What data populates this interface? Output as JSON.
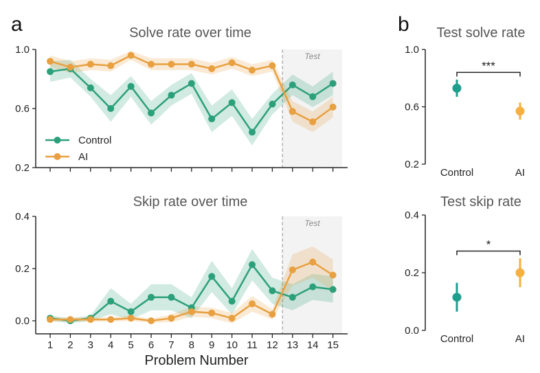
{
  "figure": {
    "panel_a_letter": "a",
    "panel_b_letter": "b"
  },
  "chart_data": [
    {
      "id": "solve",
      "type": "line",
      "title": "Solve rate over time",
      "xlabel": "",
      "ylabel": "",
      "x": [
        1,
        2,
        3,
        4,
        5,
        6,
        7,
        8,
        9,
        10,
        11,
        12,
        13,
        14,
        15
      ],
      "ylim": [
        0.2,
        1.0
      ],
      "yticks": [
        "1.0",
        "0.6",
        "0.2"
      ],
      "ytick_values": [
        1.0,
        0.6,
        0.2
      ],
      "test_region": {
        "start": 12.5,
        "label": "Test"
      },
      "legend": {
        "position": "lower-left",
        "entries": [
          "Control",
          "AI"
        ]
      },
      "series": [
        {
          "name": "Control",
          "color": "#2ca07a",
          "values": [
            0.85,
            0.87,
            0.74,
            0.6,
            0.75,
            0.57,
            0.69,
            0.77,
            0.53,
            0.64,
            0.44,
            0.63,
            0.76,
            0.68,
            0.77
          ],
          "ci": [
            0.07,
            0.06,
            0.06,
            0.09,
            0.07,
            0.08,
            0.07,
            0.07,
            0.09,
            0.09,
            0.09,
            0.07,
            0.07,
            0.07,
            0.08
          ]
        },
        {
          "name": "AI",
          "color": "#e8a040",
          "values": [
            0.92,
            0.88,
            0.9,
            0.89,
            0.96,
            0.9,
            0.9,
            0.9,
            0.87,
            0.91,
            0.86,
            0.89,
            0.58,
            0.51,
            0.61
          ],
          "ci": [
            0.04,
            0.04,
            0.04,
            0.04,
            0.03,
            0.04,
            0.04,
            0.04,
            0.04,
            0.04,
            0.04,
            0.04,
            0.07,
            0.07,
            0.07
          ]
        }
      ]
    },
    {
      "id": "skip",
      "type": "line",
      "title": "Skip rate over time",
      "xlabel": "Problem Number",
      "ylabel": "",
      "x": [
        1,
        2,
        3,
        4,
        5,
        6,
        7,
        8,
        9,
        10,
        11,
        12,
        13,
        14,
        15
      ],
      "xticks": [
        "1",
        "2",
        "3",
        "4",
        "5",
        "6",
        "7",
        "8",
        "9",
        "10",
        "11",
        "12",
        "13",
        "14",
        "15"
      ],
      "ylim": [
        -0.05,
        0.4
      ],
      "yticks": [
        "0.4",
        "0.2",
        "0.0"
      ],
      "ytick_values": [
        0.4,
        0.2,
        0.0
      ],
      "test_region": {
        "start": 12.5,
        "label": "Test"
      },
      "series": [
        {
          "name": "Control",
          "color": "#2ca07a",
          "values": [
            0.01,
            0.0,
            0.01,
            0.075,
            0.035,
            0.09,
            0.09,
            0.05,
            0.17,
            0.075,
            0.215,
            0.115,
            0.09,
            0.13,
            0.12
          ],
          "ci": [
            0.01,
            0.01,
            0.01,
            0.05,
            0.03,
            0.05,
            0.05,
            0.04,
            0.06,
            0.05,
            0.06,
            0.05,
            0.05,
            0.05,
            0.05
          ]
        },
        {
          "name": "AI",
          "color": "#e8a040",
          "values": [
            0.005,
            0.005,
            0.005,
            0.005,
            0.01,
            0.0,
            0.01,
            0.035,
            0.03,
            0.01,
            0.065,
            0.025,
            0.195,
            0.225,
            0.175
          ],
          "ci": [
            0.008,
            0.008,
            0.008,
            0.008,
            0.01,
            0.008,
            0.015,
            0.02,
            0.02,
            0.02,
            0.03,
            0.02,
            0.06,
            0.06,
            0.06
          ]
        }
      ]
    },
    {
      "id": "test-solve",
      "type": "scatter",
      "title": "Test solve rate",
      "categories": [
        "Control",
        "AI"
      ],
      "ylim": [
        0.2,
        1.0
      ],
      "yticks": [
        "1.0",
        "0.6",
        "0.2"
      ],
      "ytick_values": [
        1.0,
        0.6,
        0.2
      ],
      "series": [
        {
          "name": "Control",
          "color": "#1f9e8e",
          "value": 0.73,
          "err_low": 0.67,
          "err_high": 0.79
        },
        {
          "name": "AI",
          "color": "#f5b041",
          "value": 0.57,
          "err_low": 0.51,
          "err_high": 0.63
        }
      ],
      "significance": {
        "label": "***",
        "bracket_y": 0.84
      }
    },
    {
      "id": "test-skip",
      "type": "scatter",
      "title": "Test skip rate",
      "categories": [
        "Control",
        "AI"
      ],
      "ylim": [
        0.0,
        0.4
      ],
      "yticks": [
        "0.4",
        "0.2",
        "0.0"
      ],
      "ytick_values": [
        0.4,
        0.2,
        0.0
      ],
      "series": [
        {
          "name": "Control",
          "color": "#1f9e8e",
          "value": 0.115,
          "err_low": 0.065,
          "err_high": 0.165
        },
        {
          "name": "AI",
          "color": "#f5b041",
          "value": 0.2,
          "err_low": 0.15,
          "err_high": 0.25
        }
      ],
      "significance": {
        "label": "*",
        "bracket_y": 0.275
      }
    }
  ]
}
